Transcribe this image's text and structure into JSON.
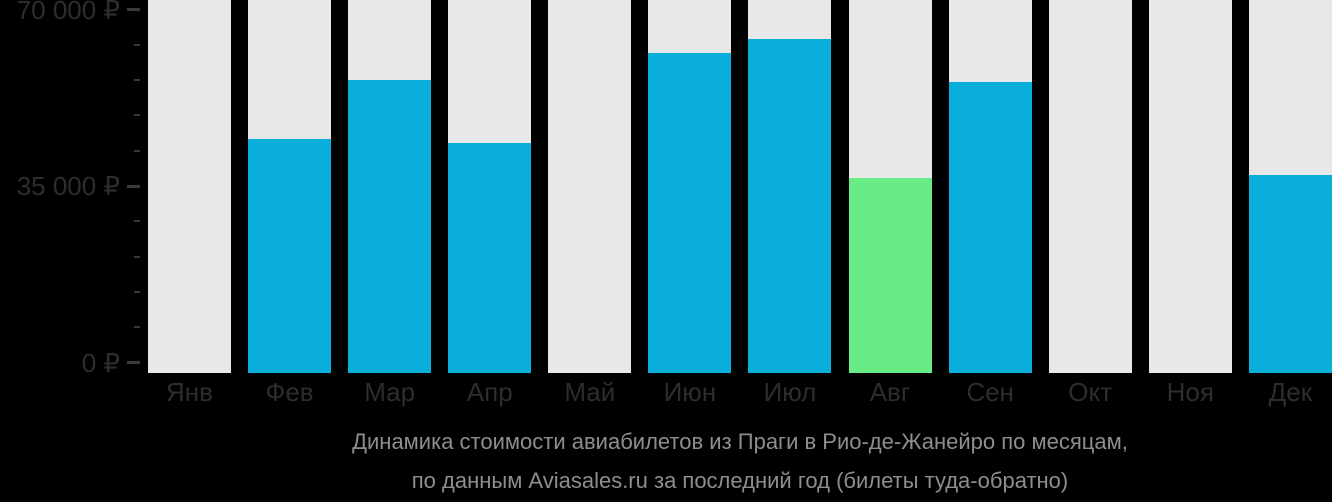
{
  "colors": {
    "background": "#000000",
    "bar_track": "#e8e8e8",
    "bar_default": "#0aaedb",
    "bar_highlight": "#68ec86",
    "axis_text": "#2d2d2d",
    "tick": "#3a3a3a",
    "caption_text": "#8e8e8e"
  },
  "caption": {
    "line1": "Динамика стоимости авиабилетов из Праги в Рио-де-Жанейро по месяцам,",
    "line2": "по данным Aviasales.ru за последний год (билеты туда-обратно)"
  },
  "chart_data": {
    "type": "bar",
    "title": "Динамика стоимости авиабилетов из Праги в Рио-де-Жанейро по месяцам, по данным Aviasales.ru за последний год (билеты туда-обратно)",
    "categories": [
      "Янв",
      "Фев",
      "Мар",
      "Апр",
      "Май",
      "Июн",
      "Июл",
      "Авг",
      "Сен",
      "Окт",
      "Ноя",
      "Дек"
    ],
    "values": [
      null,
      45100,
      56400,
      44200,
      null,
      61600,
      64300,
      37500,
      56000,
      null,
      null,
      38200
    ],
    "highlight_index": 7,
    "xlabel": "",
    "ylabel": "",
    "ylim": [
      0,
      70000
    ],
    "currency": "₽",
    "y_ticks": [
      {
        "value": 70000,
        "label": "70 000 ₽"
      },
      {
        "value": 35000,
        "label": "35 000 ₽"
      },
      {
        "value": 0,
        "label": "0 ₽"
      }
    ],
    "minor_tick_step": 7000,
    "grid": false,
    "legend": false
  }
}
